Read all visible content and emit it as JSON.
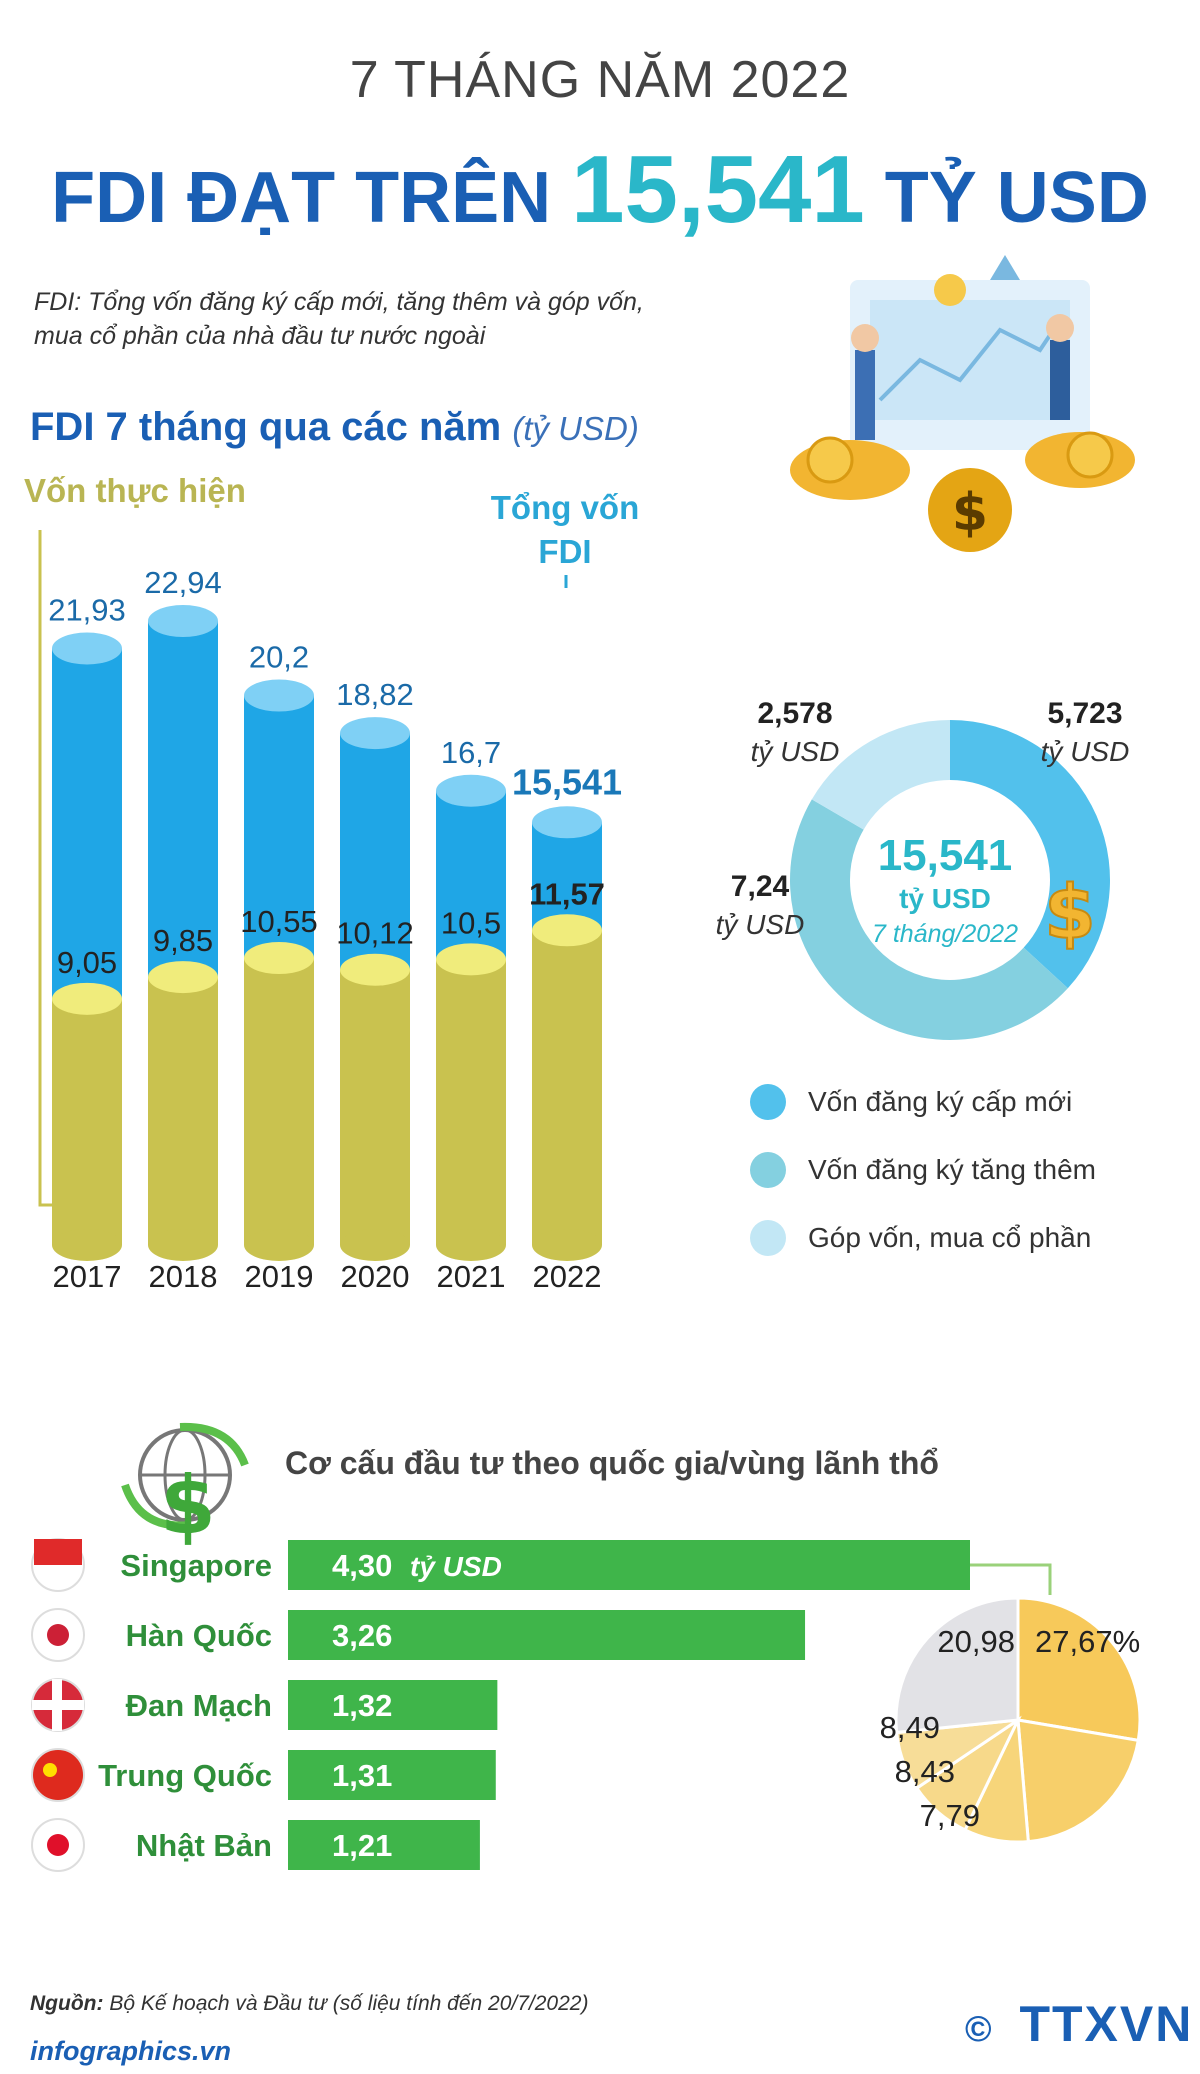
{
  "header": {
    "kicker": "7 THÁNG NĂM 2022",
    "headline_pre": "FDI ĐẠT TRÊN",
    "headline_value": "15,541",
    "headline_post": "TỶ USD",
    "definition": "FDI: Tổng vốn đăng ký cấp mới, tăng thêm và góp vốn, mua cổ phần của nhà đầu tư nước ngoài"
  },
  "colors": {
    "blue_dark": "#1a5fb4",
    "teal": "#2ab7c9",
    "bar_blue": "#1fa6e6",
    "bar_olive": "#c9c24f",
    "green": "#3fb54a",
    "donut_new": "#52c1ec",
    "donut_add": "#84d0e0",
    "donut_share": "#c2e7f5"
  },
  "chart_data": [
    {
      "type": "bar",
      "title": "FDI 7 tháng qua các năm",
      "unit": "(tỷ USD)",
      "categories": [
        "2017",
        "2018",
        "2019",
        "2020",
        "2021",
        "2022"
      ],
      "series": [
        {
          "name": "Tổng vốn FDI",
          "values": [
            21.93,
            22.94,
            20.2,
            18.82,
            16.7,
            15.541
          ],
          "labels": [
            "21,93",
            "22,94",
            "20,2",
            "18,82",
            "16,7",
            "15,541"
          ]
        },
        {
          "name": "Vốn thực hiện",
          "values": [
            9.05,
            9.85,
            10.55,
            10.12,
            10.5,
            11.57
          ],
          "labels": [
            "9,05",
            "9,85",
            "10,55",
            "10,12",
            "10,5",
            "11,57"
          ]
        }
      ],
      "legend_realized": "Vốn thực hiện",
      "legend_total_line1": "Tổng vốn",
      "legend_total_line2": "FDI",
      "ylim": [
        0,
        25
      ]
    },
    {
      "type": "pie",
      "center_value": "15,541",
      "center_unit": "tỷ USD",
      "center_period": "7 tháng/2022",
      "slices": [
        {
          "name": "Vốn đăng ký cấp mới",
          "value": 5.723,
          "label": "5,723",
          "unit": "tỷ USD"
        },
        {
          "name": "Vốn đăng ký tăng thêm",
          "value": 7.24,
          "label": "7,24",
          "unit": "tỷ USD"
        },
        {
          "name": "Góp vốn, mua cổ phần",
          "value": 2.578,
          "label": "2,578",
          "unit": "tỷ USD"
        }
      ]
    },
    {
      "type": "bar",
      "title": "Cơ cấu đầu tư theo quốc gia/vùng lãnh thổ",
      "orientation": "horizontal",
      "categories": [
        "Singapore",
        "Hàn Quốc",
        "Đan Mạch",
        "Trung Quốc",
        "Nhật Bản"
      ],
      "values": [
        4.3,
        3.26,
        1.32,
        1.31,
        1.21
      ],
      "labels": [
        "4,30",
        "3,26",
        "1,32",
        "1,31",
        "1,21"
      ],
      "first_unit": "tỷ USD",
      "pie_percent": [
        27.67,
        20.98,
        8.49,
        8.43,
        7.79
      ],
      "pie_labels": [
        "27,67%",
        "20,98",
        "8,49",
        "8,43",
        "7,79"
      ]
    }
  ],
  "footer": {
    "source_label": "Nguồn:",
    "source_text": "Bộ Kế hoạch và Đầu tư (số liệu tính đến 20/7/2022)",
    "site": "infographics.vn",
    "logo": "TTXVN",
    "copyright": "©"
  }
}
